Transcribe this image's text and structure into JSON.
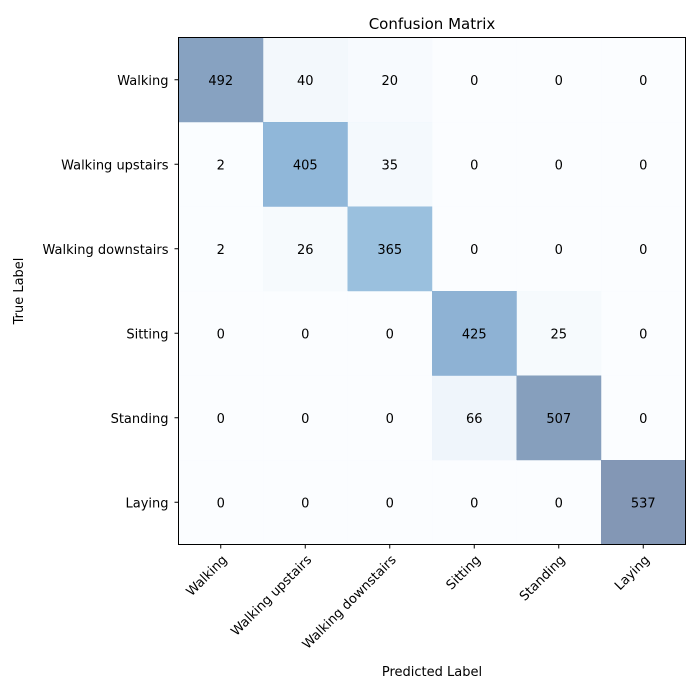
{
  "chart_data": {
    "type": "heatmap",
    "title": "Confusion Matrix",
    "xlabel": "Predicted Label",
    "ylabel": "True Label",
    "x_categories": [
      "Walking",
      "Walking upstairs",
      "Walking downstairs",
      "Sitting",
      "Standing",
      "Laying"
    ],
    "y_categories": [
      "Walking",
      "Walking upstairs",
      "Walking downstairs",
      "Sitting",
      "Standing",
      "Laying"
    ],
    "values": [
      [
        492,
        40,
        20,
        0,
        0,
        0
      ],
      [
        2,
        405,
        35,
        0,
        0,
        0
      ],
      [
        2,
        26,
        365,
        0,
        0,
        0
      ],
      [
        0,
        0,
        0,
        425,
        25,
        0
      ],
      [
        0,
        0,
        0,
        66,
        507,
        0
      ],
      [
        0,
        0,
        0,
        0,
        0,
        537
      ]
    ],
    "colormap": [
      "#f7fbff",
      "#c6dbef",
      "#6baed6",
      "#2171b5",
      "#08306b"
    ],
    "cell_opacity": 0.5,
    "grid": false
  }
}
